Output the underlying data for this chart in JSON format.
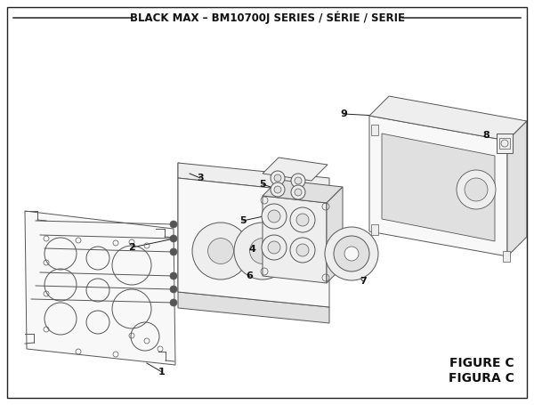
{
  "title": "BLACK MAX – BM10700J SERIES / SÉRIE / SERIE",
  "figure_label": "FIGURE C",
  "figura_label": "FIGURA C",
  "bg_color": "#ffffff",
  "line_color": "#555555",
  "dark_color": "#222222",
  "text_color": "#111111",
  "fill_light": "#f8f8f8",
  "fill_mid": "#eeeeee",
  "fill_dark": "#e0e0e0",
  "title_fontsize": 8.5,
  "label_fontsize": 8,
  "fig_label_fontsize": 10
}
